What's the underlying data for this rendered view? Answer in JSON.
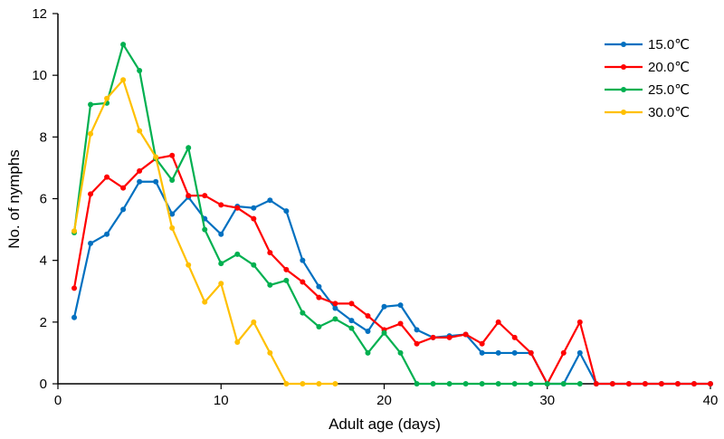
{
  "chart_data": {
    "type": "line",
    "title": "",
    "xlabel": "Adult age (days)",
    "ylabel": "No. of nymphs",
    "xlim": [
      0,
      40
    ],
    "ylim": [
      0,
      12
    ],
    "xticks": [
      0,
      10,
      20,
      30,
      40
    ],
    "yticks": [
      0,
      2,
      4,
      6,
      8,
      10,
      12
    ],
    "grid": false,
    "legend_position": "top-right",
    "series": [
      {
        "name": "15.0℃",
        "color": "#0070C0",
        "x": [
          1,
          2,
          3,
          4,
          5,
          6,
          7,
          8,
          9,
          10,
          11,
          12,
          13,
          14,
          15,
          16,
          17,
          18,
          19,
          20,
          21,
          22,
          23,
          24,
          25,
          26,
          27,
          28,
          29,
          30,
          31,
          32,
          33,
          34,
          35,
          36,
          37,
          38,
          39,
          40
        ],
        "y": [
          2.15,
          4.55,
          4.85,
          5.65,
          6.55,
          6.55,
          5.5,
          6.05,
          5.35,
          4.85,
          5.75,
          5.7,
          5.95,
          5.6,
          4.0,
          3.15,
          2.45,
          2.05,
          1.7,
          2.5,
          2.55,
          1.75,
          1.5,
          1.55,
          1.6,
          1.0,
          1.0,
          1.0,
          1.0,
          0,
          0,
          1.0,
          0,
          0,
          0,
          0,
          0,
          0,
          0,
          0
        ]
      },
      {
        "name": "20.0℃",
        "color": "#FF0000",
        "x": [
          1,
          2,
          3,
          4,
          5,
          6,
          7,
          8,
          9,
          10,
          11,
          12,
          13,
          14,
          15,
          16,
          17,
          18,
          19,
          20,
          21,
          22,
          23,
          24,
          25,
          26,
          27,
          28,
          29,
          30,
          31,
          32,
          33,
          34,
          35,
          36,
          37,
          38,
          39,
          40
        ],
        "y": [
          3.1,
          6.15,
          6.7,
          6.35,
          6.9,
          7.3,
          7.4,
          6.1,
          6.1,
          5.8,
          5.7,
          5.35,
          4.25,
          3.7,
          3.3,
          2.8,
          2.6,
          2.6,
          2.2,
          1.75,
          1.95,
          1.3,
          1.5,
          1.5,
          1.6,
          1.3,
          2.0,
          1.5,
          1.0,
          0,
          1.0,
          2.0,
          0,
          0,
          0,
          0,
          0,
          0,
          0,
          0
        ]
      },
      {
        "name": "25.0℃",
        "color": "#00B050",
        "x": [
          1,
          2,
          3,
          4,
          5,
          6,
          7,
          8,
          9,
          10,
          11,
          12,
          13,
          14,
          15,
          16,
          17,
          18,
          19,
          20,
          21,
          22,
          23,
          24,
          25,
          26,
          27,
          28,
          29,
          30,
          31,
          32
        ],
        "y": [
          4.9,
          9.05,
          9.1,
          11.0,
          10.15,
          7.3,
          6.6,
          7.65,
          5.0,
          3.9,
          4.2,
          3.85,
          3.2,
          3.35,
          2.3,
          1.85,
          2.1,
          1.8,
          1.0,
          1.65,
          1.0,
          0,
          0,
          0,
          0,
          0,
          0,
          0,
          0,
          0,
          0,
          0
        ]
      },
      {
        "name": "30.0℃",
        "color": "#FFC000",
        "x": [
          1,
          2,
          3,
          4,
          5,
          6,
          7,
          8,
          9,
          10,
          11,
          12,
          13,
          14,
          15,
          16,
          17
        ],
        "y": [
          4.95,
          8.1,
          9.25,
          9.85,
          8.2,
          7.35,
          5.05,
          3.85,
          2.65,
          3.25,
          1.35,
          2.0,
          1.0,
          0,
          0,
          0,
          0
        ]
      }
    ]
  }
}
